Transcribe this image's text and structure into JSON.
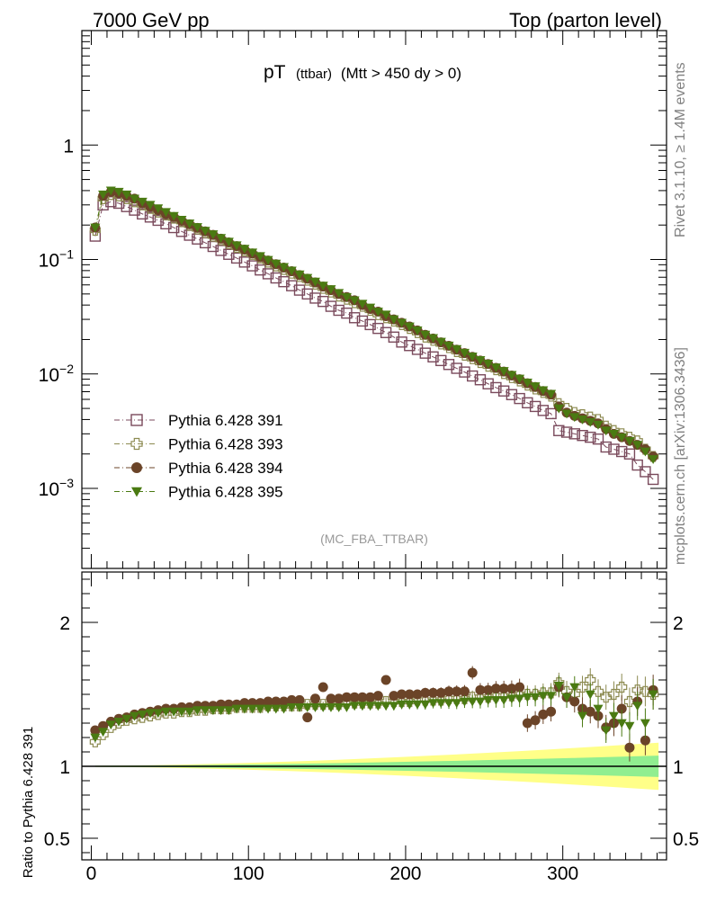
{
  "header": {
    "left": "7000 GeV pp",
    "right": "Top (parton level)"
  },
  "side_labels": {
    "rivet": "Rivet 3.1.10, ≥ 1.4M events",
    "mcplots": "mcplots.cern.ch [arXiv:1306.3436]"
  },
  "plot_title": {
    "main": "pT",
    "sub": "(ttbar)",
    "cut": "(Mtt > 450 dy > 0)"
  },
  "analysis_tag": "(MC_FBA_TTBAR)",
  "ratio_ylabel": "Ratio to Pythia 6.428 391",
  "colors": {
    "s391": "#7a4a5c",
    "s393": "#8c8a50",
    "s394": "#6b4428",
    "s395": "#4a7a12",
    "band_inner": "#90ee90",
    "band_outer": "#ffff88"
  },
  "chart_data": [
    {
      "type": "scatter",
      "panel": "main",
      "yscale": "log",
      "ylim": [
        0.0002,
        10
      ],
      "xlim": [
        -6,
        366
      ],
      "ytick_labels": [
        "10^-3",
        "10^-2",
        "10^-1",
        "1"
      ],
      "ytick_values": [
        0.001,
        0.01,
        0.1,
        1
      ],
      "legend_placement": "bottom-left",
      "x": [
        2.5,
        7.5,
        12.5,
        17.5,
        22.5,
        27.5,
        32.5,
        37.5,
        42.5,
        47.5,
        52.5,
        57.5,
        62.5,
        67.5,
        72.5,
        77.5,
        82.5,
        87.5,
        92.5,
        97.5,
        102.5,
        107.5,
        112.5,
        117.5,
        122.5,
        127.5,
        132.5,
        137.5,
        142.5,
        147.5,
        152.5,
        157.5,
        162.5,
        167.5,
        172.5,
        177.5,
        182.5,
        187.5,
        192.5,
        197.5,
        202.5,
        207.5,
        212.5,
        217.5,
        222.5,
        227.5,
        232.5,
        237.5,
        242.5,
        247.5,
        252.5,
        257.5,
        262.5,
        267.5,
        272.5,
        277.5,
        282.5,
        287.5,
        292.5,
        297.5,
        302.5,
        307.5,
        312.5,
        317.5,
        322.5,
        327.5,
        332.5,
        337.5,
        342.5,
        347.5,
        352.5,
        357.5
      ],
      "series": [
        {
          "name": "Pythia 6.428 391",
          "marker": "open-square",
          "values": [
            0.16,
            0.3,
            0.32,
            0.31,
            0.29,
            0.27,
            0.25,
            0.235,
            0.22,
            0.205,
            0.19,
            0.176,
            0.163,
            0.151,
            0.14,
            0.13,
            0.12,
            0.111,
            0.103,
            0.095,
            0.088,
            0.081,
            0.075,
            0.069,
            0.064,
            0.059,
            0.054,
            0.05,
            0.046,
            0.043,
            0.039,
            0.036,
            0.034,
            0.031,
            0.029,
            0.027,
            0.025,
            0.023,
            0.021,
            0.019,
            0.0177,
            0.0164,
            0.0152,
            0.0141,
            0.0131,
            0.0121,
            0.0112,
            0.0104,
            0.0096,
            0.0089,
            0.0082,
            0.0076,
            0.0071,
            0.0066,
            0.0061,
            0.0056,
            0.0052,
            0.0048,
            0.0045,
            0.0032,
            0.0031,
            0.003,
            0.0029,
            0.0028,
            0.0027,
            0.0023,
            0.0022,
            0.0021,
            0.002,
            0.0016,
            0.0014,
            0.0012
          ]
        },
        {
          "name": "Pythia 6.428 393",
          "marker": "open-cross",
          "values": [
            0.18,
            0.34,
            0.37,
            0.36,
            0.34,
            0.32,
            0.3,
            0.28,
            0.26,
            0.245,
            0.23,
            0.214,
            0.199,
            0.185,
            0.172,
            0.16,
            0.149,
            0.138,
            0.128,
            0.119,
            0.111,
            0.103,
            0.095,
            0.088,
            0.082,
            0.076,
            0.071,
            0.066,
            0.061,
            0.056,
            0.052,
            0.048,
            0.045,
            0.042,
            0.039,
            0.036,
            0.033,
            0.031,
            0.029,
            0.027,
            0.025,
            0.023,
            0.021,
            0.0197,
            0.0183,
            0.017,
            0.0157,
            0.0146,
            0.0136,
            0.0126,
            0.0117,
            0.0109,
            0.0101,
            0.0093,
            0.0087,
            0.008,
            0.0074,
            0.0069,
            0.0064,
            0.0055,
            0.005,
            0.0046,
            0.0044,
            0.0042,
            0.004,
            0.0035,
            0.0032,
            0.003,
            0.0028,
            0.0026,
            0.0022,
            0.0019
          ]
        },
        {
          "name": "Pythia 6.428 394",
          "marker": "filled-circle",
          "values": [
            0.19,
            0.36,
            0.39,
            0.38,
            0.36,
            0.34,
            0.31,
            0.29,
            0.27,
            0.25,
            0.235,
            0.218,
            0.203,
            0.189,
            0.176,
            0.164,
            0.152,
            0.141,
            0.131,
            0.122,
            0.113,
            0.105,
            0.098,
            0.091,
            0.085,
            0.079,
            0.073,
            0.068,
            0.063,
            0.058,
            0.054,
            0.05,
            0.047,
            0.044,
            0.04,
            0.037,
            0.035,
            0.032,
            0.03,
            0.028,
            0.026,
            0.024,
            0.022,
            0.0204,
            0.0189,
            0.0176,
            0.0163,
            0.0152,
            0.0141,
            0.0131,
            0.0122,
            0.0113,
            0.0105,
            0.0097,
            0.009,
            0.0083,
            0.0077,
            0.0071,
            0.0066,
            0.0052,
            0.0046,
            0.0043,
            0.0041,
            0.0039,
            0.0037,
            0.0033,
            0.003,
            0.0028,
            0.0026,
            0.0024,
            0.0022,
            0.0019
          ]
        },
        {
          "name": "Pythia 6.428 395",
          "marker": "filled-triangle-down",
          "values": [
            0.19,
            0.37,
            0.4,
            0.39,
            0.37,
            0.34,
            0.32,
            0.3,
            0.28,
            0.26,
            0.24,
            0.222,
            0.206,
            0.192,
            0.178,
            0.166,
            0.154,
            0.143,
            0.133,
            0.124,
            0.115,
            0.107,
            0.099,
            0.092,
            0.086,
            0.08,
            0.074,
            0.069,
            0.064,
            0.059,
            0.055,
            0.051,
            0.047,
            0.044,
            0.041,
            0.038,
            0.035,
            0.033,
            0.03,
            0.028,
            0.026,
            0.024,
            0.022,
            0.0206,
            0.0191,
            0.0177,
            0.0165,
            0.0153,
            0.0142,
            0.0132,
            0.0123,
            0.0114,
            0.0106,
            0.0098,
            0.0091,
            0.0084,
            0.0078,
            0.0072,
            0.0067,
            0.005,
            0.0045,
            0.0042,
            0.004,
            0.0038,
            0.0036,
            0.0032,
            0.003,
            0.0028,
            0.0026,
            0.0024,
            0.0021,
            0.0018
          ]
        }
      ]
    },
    {
      "type": "scatter",
      "panel": "ratio",
      "ylabel": "Ratio to Pythia 6.428 391",
      "ylim": [
        0.35,
        2.35
      ],
      "xlim": [
        -6,
        366
      ],
      "xtick_labels": [
        "0",
        "100",
        "200",
        "300"
      ],
      "xtick_values": [
        0,
        100,
        200,
        300
      ],
      "ytick_labels": [
        "0.5",
        "1",
        "2"
      ],
      "ytick_values": [
        0.5,
        1,
        2
      ],
      "bands": {
        "inner_halfwidth_at_end": 0.07,
        "outer_halfwidth_at_end": 0.16
      },
      "series": [
        {
          "name": "Pythia 6.428 393",
          "marker": "open-cross",
          "values": [
            1.17,
            1.22,
            1.27,
            1.3,
            1.32,
            1.33,
            1.34,
            1.35,
            1.36,
            1.37,
            1.37,
            1.38,
            1.38,
            1.39,
            1.39,
            1.4,
            1.4,
            1.4,
            1.41,
            1.41,
            1.41,
            1.41,
            1.42,
            1.42,
            1.42,
            1.42,
            1.42,
            1.43,
            1.43,
            1.43,
            1.43,
            1.43,
            1.44,
            1.44,
            1.44,
            1.44,
            1.44,
            1.45,
            1.45,
            1.45,
            1.45,
            1.46,
            1.46,
            1.46,
            1.46,
            1.47,
            1.47,
            1.47,
            1.48,
            1.48,
            1.48,
            1.49,
            1.49,
            1.49,
            1.5,
            1.5,
            1.5,
            1.51,
            1.51,
            1.58,
            1.52,
            1.5,
            1.55,
            1.6,
            1.52,
            1.48,
            1.5,
            1.55,
            1.45,
            1.53,
            1.52,
            1.5
          ]
        },
        {
          "name": "Pythia 6.428 394",
          "marker": "filled-circle",
          "values": [
            1.25,
            1.28,
            1.31,
            1.33,
            1.34,
            1.36,
            1.37,
            1.38,
            1.39,
            1.4,
            1.4,
            1.41,
            1.41,
            1.42,
            1.42,
            1.42,
            1.43,
            1.43,
            1.43,
            1.44,
            1.44,
            1.44,
            1.45,
            1.45,
            1.45,
            1.46,
            1.46,
            1.34,
            1.47,
            1.55,
            1.47,
            1.47,
            1.48,
            1.48,
            1.48,
            1.48,
            1.49,
            1.6,
            1.49,
            1.5,
            1.5,
            1.5,
            1.51,
            1.51,
            1.51,
            1.52,
            1.52,
            1.52,
            1.65,
            1.53,
            1.53,
            1.54,
            1.54,
            1.54,
            1.55,
            1.3,
            1.32,
            1.36,
            1.38,
            1.55,
            1.48,
            1.45,
            1.4,
            1.38,
            1.35,
            1.27,
            1.3,
            1.4,
            1.13,
            1.45,
            1.18,
            1.53
          ]
        },
        {
          "name": "Pythia 6.428 395",
          "marker": "filled-triangle-down",
          "values": [
            1.2,
            1.24,
            1.29,
            1.31,
            1.33,
            1.35,
            1.36,
            1.37,
            1.37,
            1.38,
            1.38,
            1.38,
            1.38,
            1.39,
            1.39,
            1.39,
            1.39,
            1.39,
            1.4,
            1.4,
            1.4,
            1.4,
            1.4,
            1.4,
            1.4,
            1.41,
            1.41,
            1.41,
            1.41,
            1.41,
            1.41,
            1.41,
            1.41,
            1.42,
            1.42,
            1.42,
            1.42,
            1.42,
            1.42,
            1.43,
            1.43,
            1.43,
            1.43,
            1.44,
            1.44,
            1.44,
            1.44,
            1.45,
            1.45,
            1.45,
            1.46,
            1.46,
            1.46,
            1.47,
            1.47,
            1.48,
            1.48,
            1.49,
            1.49,
            1.56,
            1.48,
            1.55,
            1.35,
            1.5,
            1.4,
            1.25,
            1.35,
            1.3,
            1.28,
            1.42,
            1.3,
            1.5
          ]
        }
      ]
    }
  ]
}
